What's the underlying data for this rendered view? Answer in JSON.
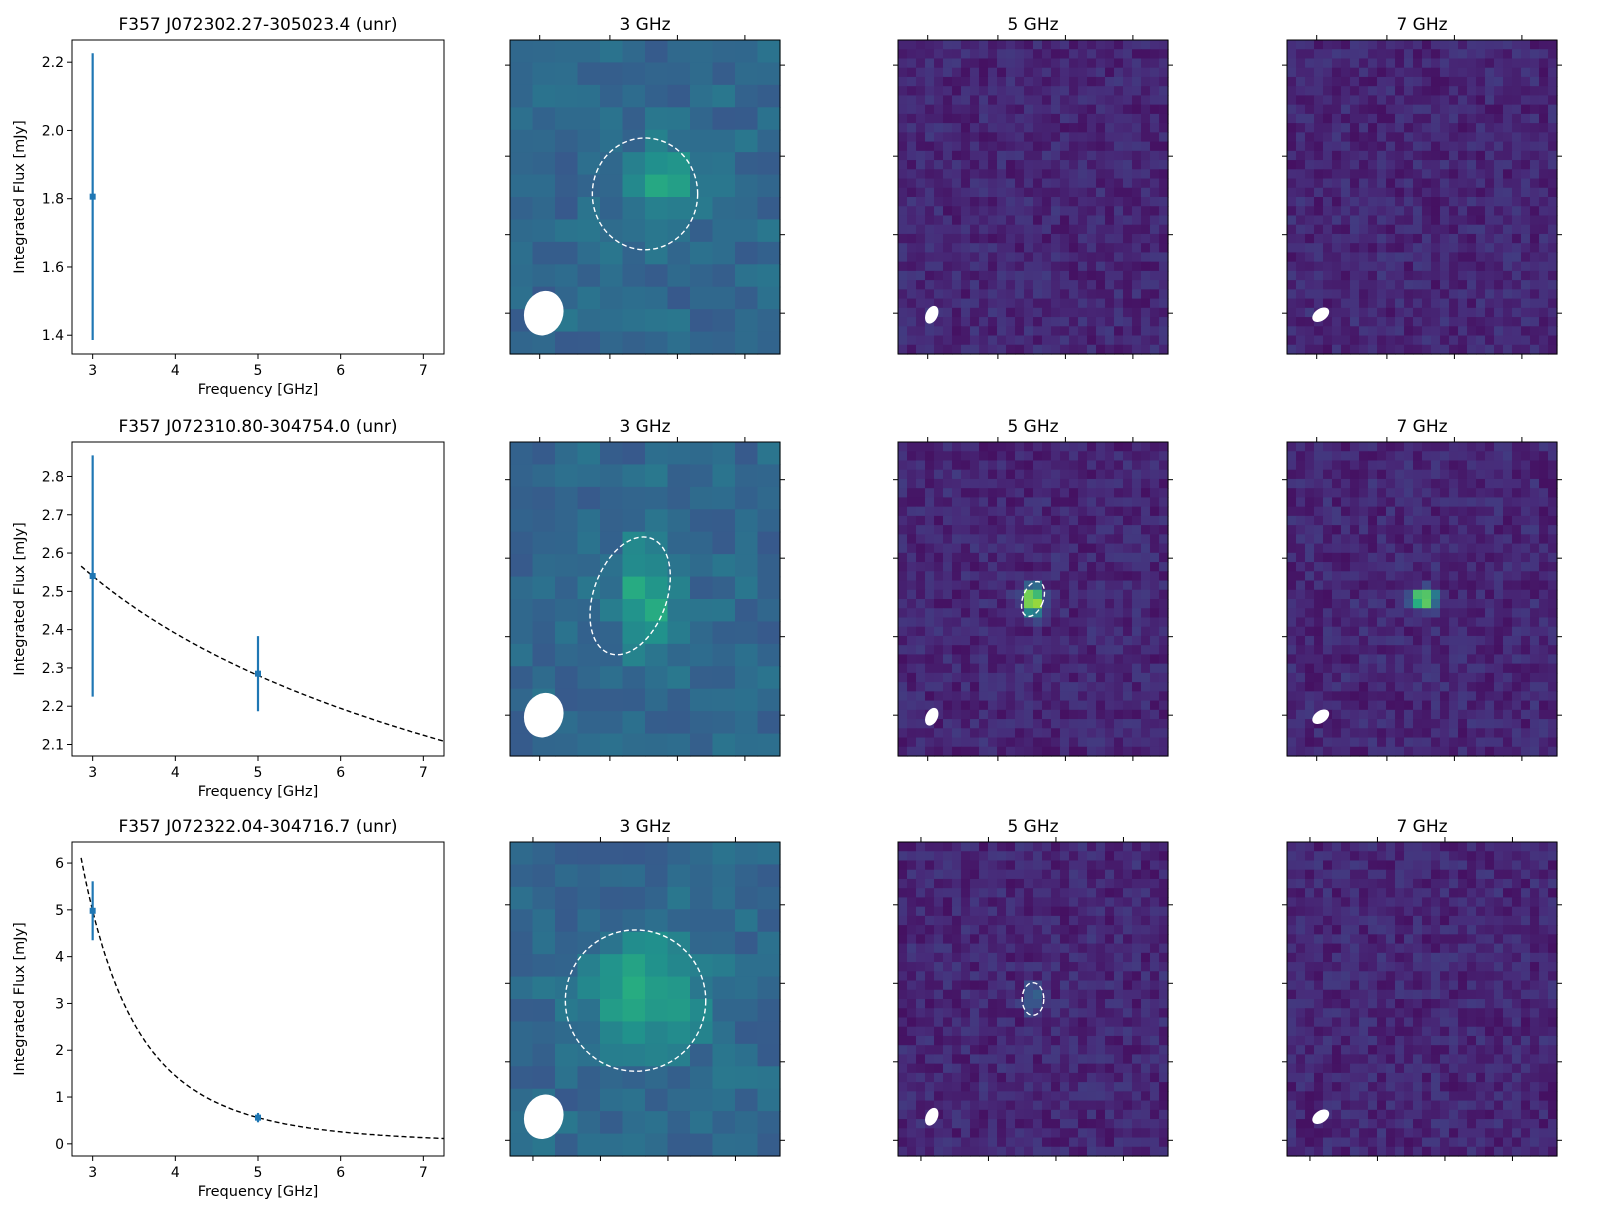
{
  "chart_data": [
    {
      "type": "scatter",
      "title": "F357 J072302.27-305023.4 (unr)",
      "xlabel": "Frequency [GHz]",
      "ylabel": "Integrated Flux [mJy]",
      "xlim": [
        2.75,
        7.25
      ],
      "ylim": [
        1.345,
        2.265
      ],
      "xticks": [
        "3",
        "4",
        "5",
        "6",
        "7"
      ],
      "yticks": [
        "1.4",
        "1.6",
        "1.8",
        "2.0",
        "2.2"
      ],
      "points": [
        {
          "x": 3,
          "y": 1.806,
          "err": 0.42
        }
      ],
      "fit": null,
      "images": [
        {
          "title": "3 GHz",
          "palette": "g3",
          "seed": 11,
          "cols": 12,
          "rows": 14,
          "source": {
            "x": 0.58,
            "y": 0.45,
            "rx": 0.08,
            "ry": 0.09,
            "amp": 0.25
          },
          "ellipse": {
            "cx": 0.5,
            "cy": 0.49,
            "rx": 0.195,
            "ry": 0.178,
            "angle": 0
          },
          "beam": {
            "cx": 0.125,
            "cy": 0.87,
            "rx": 0.072,
            "ry": 0.072,
            "angle": 20
          },
          "xt": [
            0.11,
            0.37,
            0.62,
            0.87
          ],
          "yt": [
            0.08,
            0.37,
            0.62,
            0.87
          ]
        },
        {
          "title": "5 GHz",
          "palette": "v",
          "seed": 21,
          "cols": 30,
          "rows": 34,
          "source": null,
          "ellipse": null,
          "beam": {
            "cx": 0.125,
            "cy": 0.875,
            "rx": 0.022,
            "ry": 0.03,
            "angle": 25
          },
          "xt": [
            0.11,
            0.37,
            0.62,
            0.87
          ],
          "yt": [
            0.08,
            0.37,
            0.62,
            0.87
          ]
        },
        {
          "title": "7 GHz",
          "palette": "v",
          "seed": 31,
          "cols": 30,
          "rows": 34,
          "source": null,
          "ellipse": null,
          "beam": {
            "cx": 0.125,
            "cy": 0.875,
            "rx": 0.022,
            "ry": 0.03,
            "angle": 55
          },
          "xt": [
            0.11,
            0.37,
            0.62,
            0.87
          ],
          "yt": [
            0.08,
            0.37,
            0.62,
            0.87
          ]
        }
      ]
    },
    {
      "type": "scatter",
      "title": "F357 J072310.80-304754.0 (unr)",
      "xlabel": "Frequency [GHz]",
      "ylabel": "Integrated Flux [mJy]",
      "xlim": [
        2.75,
        7.25
      ],
      "ylim": [
        2.07,
        2.89
      ],
      "xticks": [
        "3",
        "4",
        "5",
        "6",
        "7"
      ],
      "yticks": [
        "2.1",
        "2.2",
        "2.3",
        "2.4",
        "2.5",
        "2.6",
        "2.7",
        "2.8"
      ],
      "points": [
        {
          "x": 3,
          "y": 2.54,
          "err": 0.315
        },
        {
          "x": 5,
          "y": 2.285,
          "err": 0.098
        }
      ],
      "fit": {
        "type": "powerlaw",
        "x0": 3,
        "y0": 2.54,
        "alpha": -0.211,
        "from": 2.86
      },
      "images": [
        {
          "title": "3 GHz",
          "palette": "g3",
          "seed": 12,
          "cols": 12,
          "rows": 14,
          "source": {
            "x": 0.5,
            "y": 0.49,
            "rx": 0.07,
            "ry": 0.13,
            "amp": 0.28
          },
          "ellipse": {
            "cx": 0.445,
            "cy": 0.49,
            "rx": 0.135,
            "ry": 0.195,
            "angle": 20
          },
          "beam": {
            "cx": 0.125,
            "cy": 0.87,
            "rx": 0.072,
            "ry": 0.072,
            "angle": 20
          },
          "xt": [
            0.11,
            0.37,
            0.62,
            0.87
          ],
          "yt": [
            0.12,
            0.37,
            0.62,
            0.87
          ]
        },
        {
          "title": "5 GHz",
          "palette": "v",
          "seed": 22,
          "cols": 30,
          "rows": 34,
          "source": {
            "x": 0.5,
            "y": 0.505,
            "rx": 0.025,
            "ry": 0.03,
            "amp": 0.95
          },
          "ellipse": {
            "cx": 0.5,
            "cy": 0.5,
            "rx": 0.038,
            "ry": 0.058,
            "angle": 20
          },
          "beam": {
            "cx": 0.125,
            "cy": 0.875,
            "rx": 0.022,
            "ry": 0.03,
            "angle": 25
          },
          "xt": [
            0.11,
            0.37,
            0.62,
            0.87
          ],
          "yt": [
            0.12,
            0.37,
            0.62,
            0.87
          ]
        },
        {
          "title": "7 GHz",
          "palette": "v",
          "seed": 32,
          "cols": 30,
          "rows": 34,
          "source": {
            "x": 0.505,
            "y": 0.5,
            "rx": 0.035,
            "ry": 0.02,
            "amp": 0.85
          },
          "ellipse": null,
          "beam": {
            "cx": 0.125,
            "cy": 0.875,
            "rx": 0.022,
            "ry": 0.03,
            "angle": 55
          },
          "xt": [
            0.11,
            0.37,
            0.62,
            0.87
          ],
          "yt": [
            0.12,
            0.37,
            0.62,
            0.87
          ]
        }
      ]
    },
    {
      "type": "scatter",
      "title": "F357 J072322.04-304716.7 (unr)",
      "xlabel": "Frequency [GHz]",
      "ylabel": "Integrated Flux [mJy]",
      "xlim": [
        2.75,
        7.25
      ],
      "ylim": [
        -0.26,
        6.45
      ],
      "xticks": [
        "3",
        "4",
        "5",
        "6",
        "7"
      ],
      "yticks": [
        "0",
        "1",
        "2",
        "3",
        "4",
        "5",
        "6"
      ],
      "points": [
        {
          "x": 3,
          "y": 4.98,
          "err": 0.63
        },
        {
          "x": 5,
          "y": 0.56,
          "err": 0.1
        }
      ],
      "fit": {
        "type": "powerlaw",
        "x0": 3,
        "y0": 4.98,
        "alpha": -4.278,
        "from": 2.86
      },
      "images": [
        {
          "title": "3 GHz",
          "palette": "g3",
          "seed": 13,
          "cols": 12,
          "rows": 14,
          "source": {
            "x": 0.5,
            "y": 0.48,
            "rx": 0.15,
            "ry": 0.12,
            "amp": 0.25
          },
          "ellipse": {
            "cx": 0.465,
            "cy": 0.505,
            "rx": 0.26,
            "ry": 0.225,
            "angle": 0
          },
          "beam": {
            "cx": 0.125,
            "cy": 0.875,
            "rx": 0.072,
            "ry": 0.072,
            "angle": 20
          },
          "xt": [
            0.085,
            0.335,
            0.585,
            0.835
          ],
          "yt": [
            0.2,
            0.45,
            0.7,
            0.95
          ]
        },
        {
          "title": "5 GHz",
          "palette": "v",
          "seed": 23,
          "cols": 30,
          "rows": 34,
          "source": {
            "x": 0.5,
            "y": 0.5,
            "rx": 0.025,
            "ry": 0.03,
            "amp": 0.3
          },
          "ellipse": {
            "cx": 0.5,
            "cy": 0.5,
            "rx": 0.04,
            "ry": 0.052,
            "angle": 0
          },
          "beam": {
            "cx": 0.125,
            "cy": 0.875,
            "rx": 0.022,
            "ry": 0.03,
            "angle": 25
          },
          "xt": [
            0.085,
            0.335,
            0.585,
            0.835
          ],
          "yt": [
            0.2,
            0.45,
            0.7,
            0.95
          ]
        },
        {
          "title": "7 GHz",
          "palette": "v",
          "seed": 33,
          "cols": 30,
          "rows": 34,
          "source": null,
          "ellipse": null,
          "beam": {
            "cx": 0.125,
            "cy": 0.875,
            "rx": 0.022,
            "ry": 0.03,
            "angle": 55
          },
          "xt": [
            0.085,
            0.335,
            0.585,
            0.835
          ],
          "yt": [
            0.2,
            0.45,
            0.7,
            0.95
          ]
        }
      ]
    }
  ],
  "colors": {
    "errorbar": "#1f77b4",
    "fit_line": "#000000",
    "contour": "#ffffff",
    "beam": "#ffffff"
  }
}
